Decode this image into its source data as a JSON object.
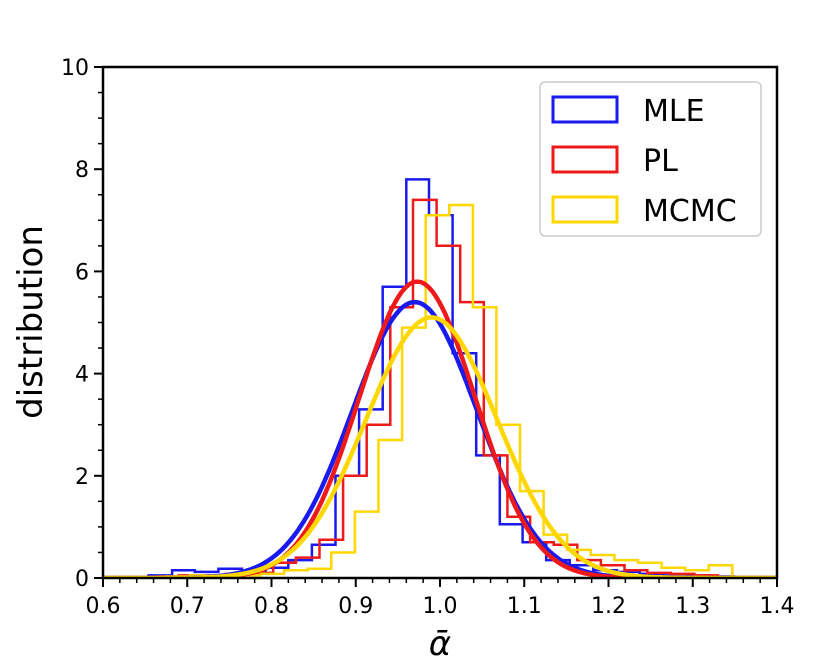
{
  "chart_data": {
    "type": "histogram",
    "title": "",
    "xlabel": "ᾱ",
    "ylabel": "distribution",
    "xlim": [
      0.6,
      1.4
    ],
    "ylim": [
      0,
      10
    ],
    "xticks": [
      "0.6",
      "0.7",
      "0.8",
      "0.9",
      "1.0",
      "1.1",
      "1.2",
      "1.3",
      "1.4"
    ],
    "yticks": [
      "0",
      "2",
      "4",
      "6",
      "8",
      "10"
    ],
    "legend_position": "top-right",
    "series": [
      {
        "name": "MLE",
        "color": "#1a1aee",
        "bin_edges": [
          0.654,
          0.682,
          0.709,
          0.737,
          0.765,
          0.793,
          0.82,
          0.848,
          0.876,
          0.904,
          0.932,
          0.96,
          0.987,
          1.015,
          1.043,
          1.071,
          1.098,
          1.126,
          1.154,
          1.182,
          1.21,
          1.237,
          1.265,
          1.293,
          1.321,
          1.349
        ],
        "counts": [
          0.05,
          0.15,
          0.12,
          0.18,
          0.1,
          0.2,
          0.35,
          0.65,
          2.0,
          3.3,
          5.7,
          7.8,
          7.1,
          4.4,
          2.4,
          1.05,
          0.7,
          0.35,
          0.25,
          0.15,
          0.12,
          0.08,
          0.05,
          0.05,
          0.03
        ],
        "fit": {
          "mean": 0.97,
          "sd": 0.074,
          "peak": 5.4
        }
      },
      {
        "name": "PL",
        "color": "#ee1a1a",
        "bin_edges": [
          0.663,
          0.69,
          0.718,
          0.746,
          0.774,
          0.802,
          0.829,
          0.857,
          0.885,
          0.913,
          0.941,
          0.968,
          0.996,
          1.024,
          1.052,
          1.08,
          1.107,
          1.135,
          1.163,
          1.191,
          1.219,
          1.246,
          1.274,
          1.302,
          1.33
        ],
        "counts": [
          0.03,
          0.05,
          0.05,
          0.08,
          0.1,
          0.3,
          0.4,
          0.75,
          2.0,
          3.0,
          5.3,
          7.4,
          6.5,
          5.4,
          2.4,
          1.2,
          0.7,
          0.65,
          0.35,
          0.25,
          0.15,
          0.1,
          0.08,
          0.05
        ],
        "fit": {
          "mean": 0.973,
          "sd": 0.069,
          "peak": 5.8
        }
      },
      {
        "name": "MCMC",
        "color": "#ffd700",
        "bin_edges": [
          0.675,
          0.703,
          0.731,
          0.759,
          0.787,
          0.815,
          0.843,
          0.871,
          0.899,
          0.927,
          0.955,
          0.983,
          1.011,
          1.039,
          1.067,
          1.095,
          1.123,
          1.151,
          1.179,
          1.207,
          1.235,
          1.263,
          1.291,
          1.319,
          1.347
        ],
        "counts": [
          0.03,
          0.05,
          0.05,
          0.05,
          0.08,
          0.15,
          0.18,
          0.5,
          1.3,
          2.7,
          4.9,
          7.1,
          7.3,
          5.3,
          3.0,
          1.7,
          0.85,
          0.55,
          0.45,
          0.35,
          0.3,
          0.2,
          0.15,
          0.25
        ],
        "fit": {
          "mean": 0.99,
          "sd": 0.078,
          "peak": 5.1
        }
      }
    ]
  }
}
